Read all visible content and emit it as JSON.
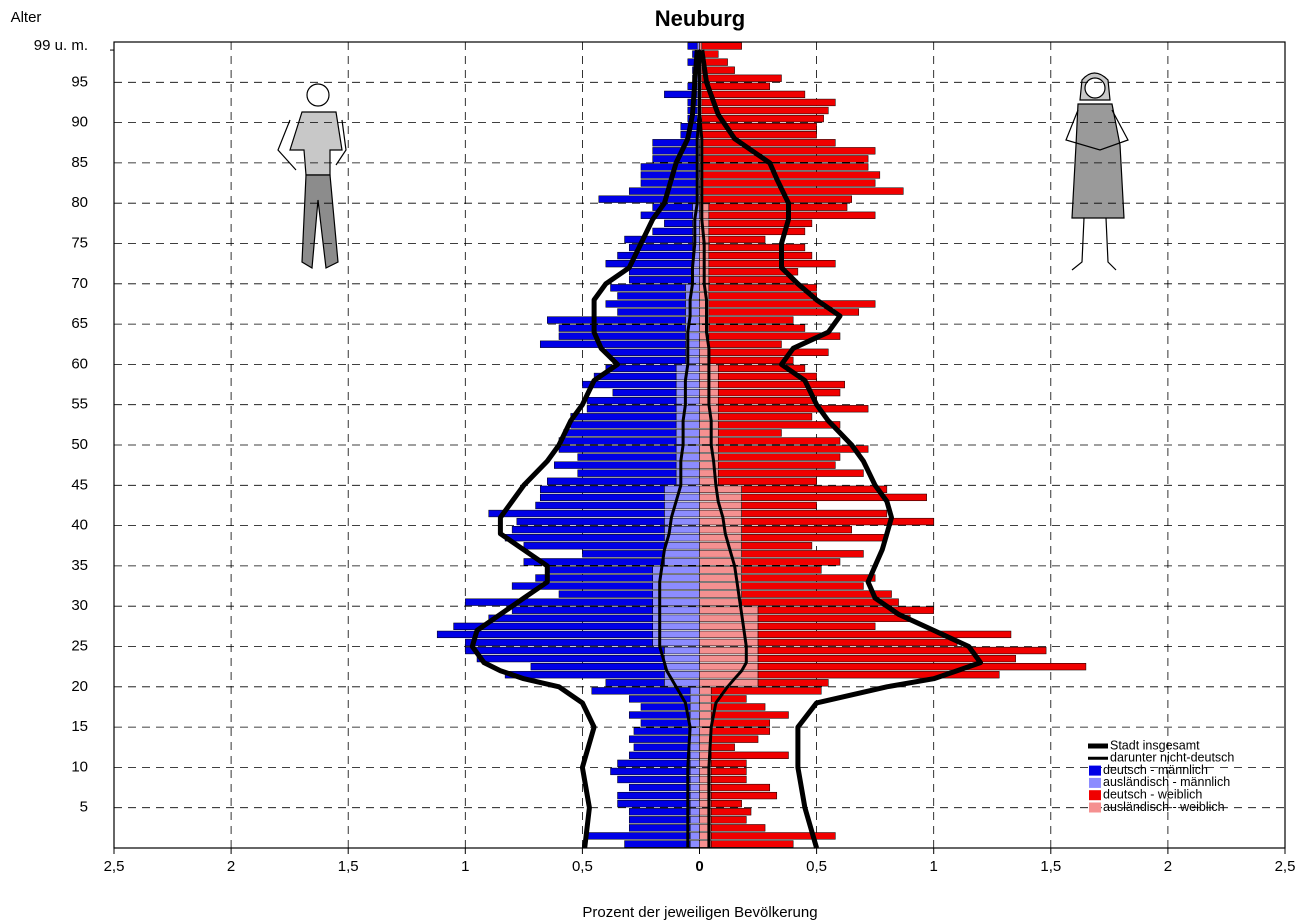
{
  "chart_data": {
    "type": "pyramid",
    "title": "Neuburg",
    "y_label": "Alter",
    "x_label": "Prozent der jeweiligen Bevölkerung",
    "xlim": [
      -2.5,
      2.5
    ],
    "xticks": [
      {
        "value": -2.5,
        "label": "2,5"
      },
      {
        "value": -2,
        "label": "2"
      },
      {
        "value": -1.5,
        "label": "1,5"
      },
      {
        "value": -1,
        "label": "1"
      },
      {
        "value": -0.5,
        "label": "0,5"
      },
      0,
      {
        "value": 0.5,
        "label": "0,5"
      },
      1,
      {
        "value": 1.5,
        "label": "1,5"
      },
      2,
      {
        "value": 2.5,
        "label": "2,5"
      }
    ],
    "ylim": [
      0,
      100
    ],
    "yticks": [
      5,
      10,
      15,
      20,
      25,
      30,
      35,
      40,
      45,
      50,
      55,
      60,
      65,
      70,
      75,
      80,
      85,
      90,
      95,
      {
        "value": 99,
        "label": "99 u. m."
      }
    ],
    "grid": true,
    "legend": "lower right",
    "series": [
      {
        "name": "Stadt insgesamt",
        "type": "line",
        "color": "#000000",
        "x": [
          0,
          5,
          10,
          15,
          18,
          20,
          21,
          22,
          23,
          25,
          27,
          29,
          31,
          33,
          35,
          37,
          39,
          41,
          43,
          45,
          48,
          50,
          53,
          55,
          58,
          60,
          62,
          64,
          66,
          68,
          70,
          72,
          75,
          78,
          80,
          83,
          85,
          88,
          91,
          95,
          99
        ],
        "left": [
          -0.49,
          -0.47,
          -0.5,
          -0.45,
          -0.5,
          -0.6,
          -0.75,
          -0.85,
          -0.92,
          -0.97,
          -0.95,
          -0.85,
          -0.75,
          -0.65,
          -0.65,
          -0.75,
          -0.85,
          -0.85,
          -0.8,
          -0.75,
          -0.65,
          -0.6,
          -0.55,
          -0.5,
          -0.45,
          -0.35,
          -0.42,
          -0.45,
          -0.45,
          -0.45,
          -0.4,
          -0.3,
          -0.25,
          -0.2,
          -0.15,
          -0.12,
          -0.1,
          -0.05,
          -0.03,
          -0.02,
          -0.01
        ],
        "right": [
          0.5,
          0.45,
          0.42,
          0.42,
          0.5,
          0.8,
          1.0,
          1.1,
          1.2,
          1.15,
          1.0,
          0.85,
          0.75,
          0.72,
          0.75,
          0.78,
          0.8,
          0.82,
          0.8,
          0.75,
          0.7,
          0.65,
          0.55,
          0.5,
          0.45,
          0.35,
          0.4,
          0.55,
          0.6,
          0.5,
          0.42,
          0.35,
          0.35,
          0.38,
          0.38,
          0.33,
          0.3,
          0.15,
          0.08,
          0.03,
          0.01
        ]
      },
      {
        "name": "darunter nicht-deutsch",
        "type": "line",
        "color": "#000000",
        "x": [
          0,
          5,
          10,
          15,
          18,
          20,
          21,
          22,
          23,
          25,
          27,
          29,
          31,
          33,
          35,
          37,
          39,
          41,
          43,
          45,
          48,
          50,
          53,
          55,
          58,
          60,
          62,
          64,
          66,
          68,
          70,
          72,
          75,
          78,
          80,
          83,
          85,
          88,
          91,
          95,
          99
        ],
        "left": [
          -0.05,
          -0.05,
          -0.05,
          -0.04,
          -0.06,
          -0.1,
          -0.12,
          -0.14,
          -0.15,
          -0.17,
          -0.17,
          -0.17,
          -0.17,
          -0.17,
          -0.16,
          -0.15,
          -0.13,
          -0.12,
          -0.1,
          -0.08,
          -0.08,
          -0.07,
          -0.07,
          -0.06,
          -0.06,
          -0.05,
          -0.05,
          -0.05,
          -0.04,
          -0.04,
          -0.03,
          -0.03,
          -0.02,
          -0.02,
          -0.01,
          -0.01,
          -0.01,
          -0.01,
          0,
          0,
          0
        ],
        "right": [
          0.04,
          0.04,
          0.04,
          0.05,
          0.07,
          0.12,
          0.15,
          0.18,
          0.2,
          0.2,
          0.19,
          0.18,
          0.17,
          0.16,
          0.15,
          0.13,
          0.11,
          0.1,
          0.08,
          0.07,
          0.06,
          0.05,
          0.05,
          0.04,
          0.04,
          0.04,
          0.04,
          0.03,
          0.03,
          0.03,
          0.02,
          0.02,
          0.02,
          0.01,
          0.01,
          0.01,
          0.01,
          0.01,
          0,
          0,
          0
        ]
      },
      {
        "name": "deutsch - männlich",
        "type": "bar",
        "color": "#0000e6",
        "stack": 1,
        "values": [
          -0.28,
          -0.45,
          -0.26,
          -0.26,
          -0.26,
          -0.31,
          -0.31,
          -0.26,
          -0.31,
          -0.34,
          -0.31,
          -0.26,
          -0.24,
          -0.26,
          -0.24,
          -0.21,
          -0.26,
          -0.21,
          -0.26,
          -0.42,
          -0.25,
          -0.68,
          -0.57,
          -0.8,
          -0.85,
          -0.8,
          -0.92,
          -0.85,
          -0.7,
          -0.6,
          -0.8,
          -0.4,
          -0.6,
          -0.5,
          -0.45,
          -0.6,
          -0.35,
          -0.6,
          -0.68,
          -0.65,
          -0.63,
          -0.75,
          -0.55,
          -0.53,
          -0.53,
          -0.55,
          -0.42,
          -0.52,
          -0.42,
          -0.5,
          -0.5,
          -0.48,
          -0.45,
          -0.45,
          -0.38,
          -0.38,
          -0.27,
          -0.4,
          -0.35,
          -0.3,
          -0.31,
          -0.34,
          -0.62,
          -0.54,
          -0.54,
          -0.59,
          -0.29,
          -0.34,
          -0.29,
          -0.32,
          -0.27,
          -0.27,
          -0.37,
          -0.32,
          -0.27,
          -0.29,
          -0.17,
          -0.12,
          -0.22,
          -0.17,
          -0.42,
          -0.29,
          -0.24,
          -0.24,
          -0.24,
          -0.19,
          -0.19,
          -0.19,
          -0.07,
          -0.07,
          -0.04,
          -0.04,
          -0.04,
          -0.14,
          -0.04,
          -0.02,
          -0.02,
          -0.04,
          -0.02,
          -0.04
        ]
      },
      {
        "name": "ausländisch - männlich",
        "type": "bar",
        "color": "#8c8cff",
        "stack": 0,
        "values": [
          -0.04,
          -0.04,
          -0.04,
          -0.04,
          -0.04,
          -0.04,
          -0.04,
          -0.04,
          -0.04,
          -0.04,
          -0.04,
          -0.04,
          -0.04,
          -0.04,
          -0.04,
          -0.04,
          -0.04,
          -0.04,
          -0.04,
          -0.04,
          -0.15,
          -0.15,
          -0.15,
          -0.15,
          -0.15,
          -0.2,
          -0.2,
          -0.2,
          -0.2,
          -0.2,
          -0.2,
          -0.2,
          -0.2,
          -0.2,
          -0.2,
          -0.15,
          -0.15,
          -0.15,
          -0.15,
          -0.15,
          -0.15,
          -0.15,
          -0.15,
          -0.15,
          -0.15,
          -0.1,
          -0.1,
          -0.1,
          -0.1,
          -0.1,
          -0.1,
          -0.1,
          -0.1,
          -0.1,
          -0.1,
          -0.1,
          -0.1,
          -0.1,
          -0.1,
          -0.1,
          -0.06,
          -0.06,
          -0.06,
          -0.06,
          -0.06,
          -0.06,
          -0.06,
          -0.06,
          -0.06,
          -0.06,
          -0.03,
          -0.03,
          -0.03,
          -0.03,
          -0.03,
          -0.03,
          -0.03,
          -0.03,
          -0.03,
          -0.03,
          -0.01,
          -0.01,
          -0.01,
          -0.01,
          -0.01,
          -0.01,
          -0.01,
          -0.01,
          -0.01,
          -0.01,
          -0.01,
          -0.01,
          -0.01,
          -0.01,
          -0.01,
          -0.01,
          -0.01,
          -0.01,
          -0.01,
          -0.01
        ]
      },
      {
        "name": "deutsch - weiblich",
        "type": "bar",
        "color": "#f00000",
        "stack": 1,
        "values": [
          0.35,
          0.53,
          0.23,
          0.15,
          0.17,
          0.13,
          0.28,
          0.25,
          0.15,
          0.15,
          0.15,
          0.33,
          0.1,
          0.2,
          0.25,
          0.25,
          0.33,
          0.23,
          0.15,
          0.47,
          0.3,
          1.03,
          1.4,
          1.1,
          1.23,
          0.85,
          1.08,
          0.5,
          0.65,
          0.75,
          0.67,
          0.64,
          0.52,
          0.57,
          0.34,
          0.42,
          0.52,
          0.3,
          0.62,
          0.47,
          0.82,
          0.62,
          0.32,
          0.79,
          0.62,
          0.42,
          0.62,
          0.5,
          0.52,
          0.64,
          0.52,
          0.27,
          0.52,
          0.4,
          0.64,
          0.42,
          0.52,
          0.54,
          0.42,
          0.37,
          0.36,
          0.51,
          0.31,
          0.56,
          0.41,
          0.36,
          0.64,
          0.71,
          0.46,
          0.46,
          0.36,
          0.38,
          0.54,
          0.44,
          0.41,
          0.24,
          0.41,
          0.44,
          0.71,
          0.59,
          0.64,
          0.86,
          0.74,
          0.76,
          0.71,
          0.71,
          0.74,
          0.57,
          0.49,
          0.49,
          0.52,
          0.54,
          0.57,
          0.44,
          0.29,
          0.34,
          0.14,
          0.11,
          0.07,
          0.17
        ]
      },
      {
        "name": "ausländisch - weiblich",
        "type": "bar",
        "color": "#f59090",
        "stack": 0,
        "values": [
          0.05,
          0.05,
          0.05,
          0.05,
          0.05,
          0.05,
          0.05,
          0.05,
          0.05,
          0.05,
          0.05,
          0.05,
          0.05,
          0.05,
          0.05,
          0.05,
          0.05,
          0.05,
          0.05,
          0.05,
          0.25,
          0.25,
          0.25,
          0.25,
          0.25,
          0.25,
          0.25,
          0.25,
          0.25,
          0.25,
          0.18,
          0.18,
          0.18,
          0.18,
          0.18,
          0.18,
          0.18,
          0.18,
          0.18,
          0.18,
          0.18,
          0.18,
          0.18,
          0.18,
          0.18,
          0.08,
          0.08,
          0.08,
          0.08,
          0.08,
          0.08,
          0.08,
          0.08,
          0.08,
          0.08,
          0.08,
          0.08,
          0.08,
          0.08,
          0.08,
          0.04,
          0.04,
          0.04,
          0.04,
          0.04,
          0.04,
          0.04,
          0.04,
          0.04,
          0.04,
          0.04,
          0.04,
          0.04,
          0.04,
          0.04,
          0.04,
          0.04,
          0.04,
          0.04,
          0.04,
          0.01,
          0.01,
          0.01,
          0.01,
          0.01,
          0.01,
          0.01,
          0.01,
          0.01,
          0.01,
          0.01,
          0.01,
          0.01,
          0.01,
          0.01,
          0.01,
          0.01,
          0.01,
          0.01,
          0.01
        ]
      }
    ]
  }
}
